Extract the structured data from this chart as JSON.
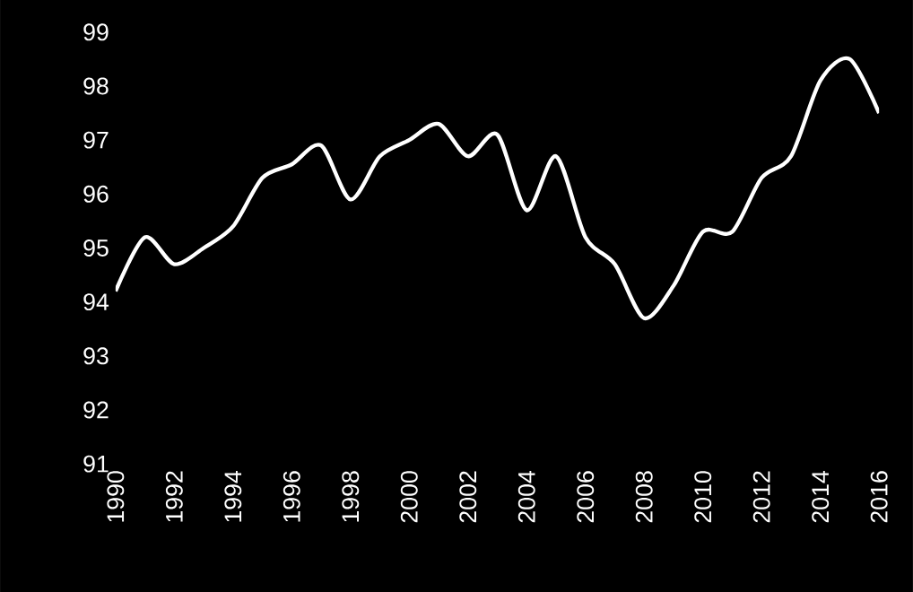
{
  "chart_data": {
    "type": "line",
    "x": [
      1990,
      1991,
      1992,
      1993,
      1994,
      1995,
      1996,
      1997,
      1998,
      1999,
      2000,
      2001,
      2002,
      2003,
      2004,
      2005,
      2006,
      2007,
      2008,
      2009,
      2010,
      2011,
      2012,
      2013,
      2014,
      2015,
      2016
    ],
    "series": [
      {
        "color": "#ffffff",
        "values": [
          94.2,
          95.2,
          94.7,
          95.0,
          95.4,
          96.3,
          96.55,
          96.9,
          95.9,
          96.7,
          97.0,
          97.3,
          96.7,
          97.1,
          95.7,
          96.7,
          95.2,
          94.7,
          93.7,
          94.3,
          95.3,
          95.3,
          96.3,
          96.7,
          98.1,
          98.5,
          97.5
        ]
      }
    ],
    "xlim": [
      1990,
      2016
    ],
    "ylim": [
      91,
      99
    ],
    "xticks": [
      1990,
      1992,
      1994,
      1996,
      1998,
      2000,
      2002,
      2004,
      2006,
      2008,
      2010,
      2012,
      2014,
      2016
    ],
    "yticks": [
      91,
      92,
      93,
      94,
      95,
      96,
      97,
      98,
      99
    ],
    "grid": false,
    "marker": "none",
    "line_style": "solid"
  }
}
